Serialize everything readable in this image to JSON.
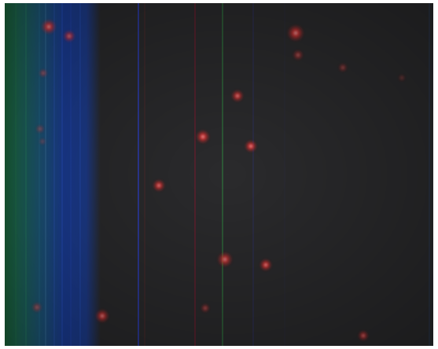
{
  "image": {
    "kind": "fluorescence-micrograph",
    "background_color": "#2b2b2d",
    "spot_color": "#ff3a3a",
    "left_band_colors": [
      "#1f6b3a",
      "#1a5f7a",
      "#1f3f9a"
    ]
  }
}
